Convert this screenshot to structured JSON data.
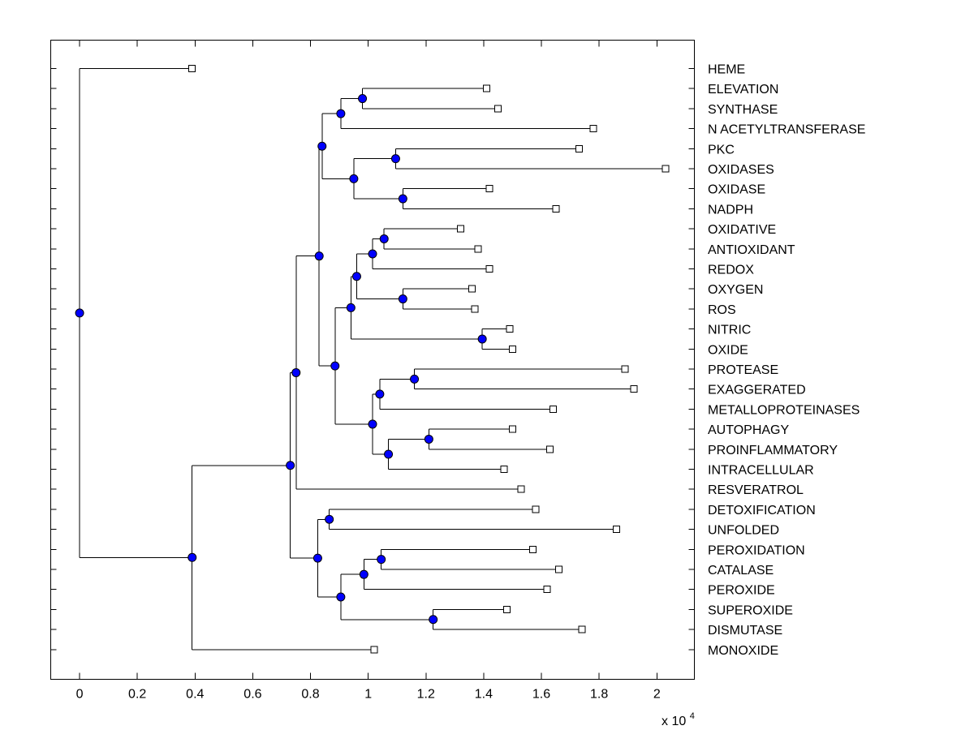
{
  "chart_data": {
    "type": "dendrogram",
    "xlim": [
      -0.1,
      2.13
    ],
    "x_ticks": [
      0,
      0.2,
      0.4,
      0.6,
      0.8,
      1,
      1.2,
      1.4,
      1.6,
      1.8,
      2
    ],
    "x_tick_labels": [
      "0",
      "0.2",
      "0.4",
      "0.6",
      "0.8",
      "1",
      "1.2",
      "1.4",
      "1.6",
      "1.8",
      "2"
    ],
    "x_multiplier": "x 10",
    "x_multiplier_exponent": "4",
    "colors": {
      "node": "#0000ff",
      "leaf": "#ffffff",
      "line": "#000000"
    },
    "leaves": [
      {
        "label": "HEME",
        "x": 0.39
      },
      {
        "label": "ELEVATION",
        "x": 1.41
      },
      {
        "label": "SYNTHASE",
        "x": 1.45
      },
      {
        "label": "N ACETYLTRANSFERASE",
        "x": 1.78
      },
      {
        "label": "PKC",
        "x": 1.73
      },
      {
        "label": "OXIDASES",
        "x": 2.03
      },
      {
        "label": "OXIDASE",
        "x": 1.42
      },
      {
        "label": "NADPH",
        "x": 1.65
      },
      {
        "label": "OXIDATIVE",
        "x": 1.32
      },
      {
        "label": "ANTIOXIDANT",
        "x": 1.38
      },
      {
        "label": "REDOX",
        "x": 1.42
      },
      {
        "label": "OXYGEN",
        "x": 1.36
      },
      {
        "label": "ROS",
        "x": 1.37
      },
      {
        "label": "NITRIC",
        "x": 1.49
      },
      {
        "label": "OXIDE",
        "x": 1.5
      },
      {
        "label": "PROTEASE",
        "x": 1.89
      },
      {
        "label": "EXAGGERATED",
        "x": 1.92
      },
      {
        "label": "METALLOPROTEINASES",
        "x": 1.64
      },
      {
        "label": "AUTOPHAGY",
        "x": 1.5
      },
      {
        "label": "PROINFLAMMATORY",
        "x": 1.63
      },
      {
        "label": "INTRACELLULAR",
        "x": 1.47
      },
      {
        "label": "RESVERATROL",
        "x": 1.53
      },
      {
        "label": "DETOXIFICATION",
        "x": 1.58
      },
      {
        "label": "UNFOLDED",
        "x": 1.86
      },
      {
        "label": "PEROXIDATION",
        "x": 1.57
      },
      {
        "label": "CATALASE",
        "x": 1.66
      },
      {
        "label": "PEROXIDE",
        "x": 1.62
      },
      {
        "label": "SUPEROXIDE",
        "x": 1.48
      },
      {
        "label": "DISMUTASE",
        "x": 1.74
      },
      {
        "label": "MONOXIDE",
        "x": 1.02
      }
    ],
    "merges": [
      {
        "id": "m1",
        "x": 0.98,
        "children": [
          "L1",
          "L2"
        ]
      },
      {
        "id": "m2",
        "x": 0.905,
        "children": [
          "m1",
          "L3"
        ]
      },
      {
        "id": "m3",
        "x": 1.095,
        "children": [
          "L4",
          "L5"
        ]
      },
      {
        "id": "m4",
        "x": 1.12,
        "children": [
          "L6",
          "L7"
        ]
      },
      {
        "id": "m5",
        "x": 0.95,
        "children": [
          "m3",
          "m4"
        ]
      },
      {
        "id": "m6",
        "x": 0.84,
        "children": [
          "m2",
          "m5"
        ]
      },
      {
        "id": "m7",
        "x": 1.055,
        "children": [
          "L8",
          "L9"
        ]
      },
      {
        "id": "m8",
        "x": 1.015,
        "children": [
          "m7",
          "L10"
        ]
      },
      {
        "id": "m9",
        "x": 1.12,
        "children": [
          "L11",
          "L12"
        ]
      },
      {
        "id": "m10",
        "x": 0.96,
        "children": [
          "m8",
          "m9"
        ]
      },
      {
        "id": "m11",
        "x": 1.395,
        "children": [
          "L13",
          "L14"
        ]
      },
      {
        "id": "m12",
        "x": 0.94,
        "children": [
          "m10",
          "m11"
        ]
      },
      {
        "id": "m13",
        "x": 1.16,
        "children": [
          "L15",
          "L16"
        ]
      },
      {
        "id": "m14",
        "x": 1.04,
        "children": [
          "m13",
          "L17"
        ]
      },
      {
        "id": "m15",
        "x": 1.21,
        "children": [
          "L18",
          "L19"
        ]
      },
      {
        "id": "m16",
        "x": 1.07,
        "children": [
          "m15",
          "L20"
        ]
      },
      {
        "id": "m17",
        "x": 1.015,
        "children": [
          "m14",
          "m16"
        ]
      },
      {
        "id": "m18",
        "x": 0.885,
        "children": [
          "m12",
          "m17"
        ]
      },
      {
        "id": "m19",
        "x": 0.83,
        "children": [
          "m6",
          "m18"
        ]
      },
      {
        "id": "m20",
        "x": 0.75,
        "children": [
          "m19",
          "L21"
        ]
      },
      {
        "id": "m21",
        "x": 0.865,
        "children": [
          "L22",
          "L23"
        ]
      },
      {
        "id": "m22",
        "x": 1.045,
        "children": [
          "L24",
          "L25"
        ]
      },
      {
        "id": "m23",
        "x": 0.985,
        "children": [
          "m22",
          "L26"
        ]
      },
      {
        "id": "m24",
        "x": 1.225,
        "children": [
          "L27",
          "L28"
        ]
      },
      {
        "id": "m25",
        "x": 0.905,
        "children": [
          "m23",
          "m24"
        ]
      },
      {
        "id": "m26",
        "x": 0.825,
        "children": [
          "m21",
          "m25"
        ]
      },
      {
        "id": "m27",
        "x": 0.73,
        "children": [
          "m20",
          "m26"
        ]
      },
      {
        "id": "m28",
        "x": 0.39,
        "children": [
          "m27",
          "L29"
        ]
      },
      {
        "id": "m29",
        "x": 0,
        "children": [
          "L0",
          "m28"
        ]
      }
    ]
  }
}
